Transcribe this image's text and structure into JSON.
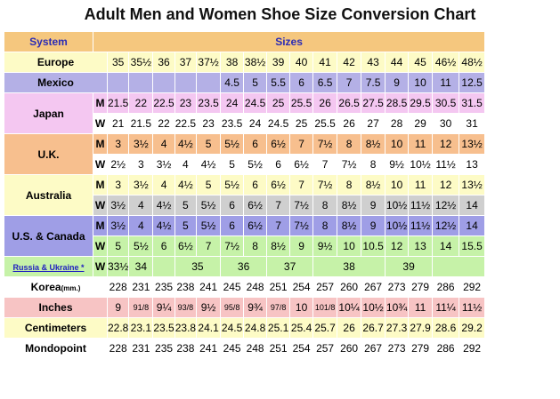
{
  "title": "Adult Men and Women Shoe Size Conversion Chart",
  "header": {
    "system": "System",
    "sizes": "Sizes"
  },
  "rows": {
    "europe": {
      "label": "Europe",
      "values": [
        "35",
        "35½",
        "36",
        "37",
        "37½",
        "38",
        "38½",
        "39",
        "40",
        "41",
        "42",
        "43",
        "44",
        "45",
        "46½",
        "48½"
      ]
    },
    "mexico": {
      "label": "Mexico",
      "values": [
        "",
        "",
        "",
        "",
        "",
        "4.5",
        "5",
        "5.5",
        "6",
        "6.5",
        "7",
        "7.5",
        "9",
        "10",
        "11",
        "12.5"
      ]
    },
    "japan_m": {
      "label": "Japan",
      "mw": "M",
      "values": [
        "21.5",
        "22",
        "22.5",
        "23",
        "23.5",
        "24",
        "24.5",
        "25",
        "25.5",
        "26",
        "26.5",
        "27.5",
        "28.5",
        "29.5",
        "30.5",
        "31.5"
      ]
    },
    "japan_w": {
      "mw": "W",
      "values": [
        "21",
        "21.5",
        "22",
        "22.5",
        "23",
        "23.5",
        "24",
        "24.5",
        "25",
        "25.5",
        "26",
        "27",
        "28",
        "29",
        "30",
        "31"
      ]
    },
    "uk_m": {
      "label": "U.K.",
      "mw": "M",
      "values": [
        "3",
        "3½",
        "4",
        "4½",
        "5",
        "5½",
        "6",
        "6½",
        "7",
        "7½",
        "8",
        "8½",
        "10",
        "11",
        "12",
        "13½"
      ]
    },
    "uk_w": {
      "mw": "W",
      "values": [
        "2½",
        "3",
        "3½",
        "4",
        "4½",
        "5",
        "5½",
        "6",
        "6½",
        "7",
        "7½",
        "8",
        "9½",
        "10½",
        "11½",
        "13"
      ]
    },
    "au_m": {
      "label": "Australia",
      "mw": "M",
      "values": [
        "3",
        "3½",
        "4",
        "4½",
        "5",
        "5½",
        "6",
        "6½",
        "7",
        "7½",
        "8",
        "8½",
        "10",
        "11",
        "12",
        "13½"
      ]
    },
    "au_w": {
      "mw": "W",
      "values": [
        "3½",
        "4",
        "4½",
        "5",
        "5½",
        "6",
        "6½",
        "7",
        "7½",
        "8",
        "8½",
        "9",
        "10½",
        "11½",
        "12½",
        "14"
      ]
    },
    "us_m": {
      "label": "U.S. & Canada",
      "mw": "M",
      "values": [
        "3½",
        "4",
        "4½",
        "5",
        "5½",
        "6",
        "6½",
        "7",
        "7½",
        "8",
        "8½",
        "9",
        "10½",
        "11½",
        "12½",
        "14"
      ]
    },
    "us_w": {
      "mw": "W",
      "values": [
        "5",
        "5½",
        "6",
        "6½",
        "7",
        "7½",
        "8",
        "8½",
        "9",
        "9½",
        "10",
        "10.5",
        "12",
        "13",
        "14",
        "15.5"
      ]
    },
    "russia": {
      "label": "Russia & Ukraine *",
      "mw": "W",
      "values": [
        "33½",
        "34",
        "35",
        "36",
        "37",
        "38",
        "39"
      ]
    },
    "korea": {
      "label": "Korea",
      "unit": "(mm.)",
      "values": [
        "228",
        "231",
        "235",
        "238",
        "241",
        "245",
        "248",
        "251",
        "254",
        "257",
        "260",
        "267",
        "273",
        "279",
        "286",
        "292"
      ]
    },
    "inches": {
      "label": "Inches",
      "values": [
        "9",
        "91/8",
        "9¼",
        "93/8",
        "9½",
        "95/8",
        "9¾",
        "97/8",
        "10",
        "101/8",
        "10¼",
        "10½",
        "10¾",
        "11",
        "11¼",
        "11½"
      ]
    },
    "centimeters": {
      "label": "Centimeters",
      "values": [
        "22.8",
        "23.1",
        "23.5",
        "23.8",
        "24.1",
        "24.5",
        "24.8",
        "25.1",
        "25.4",
        "25.7",
        "26",
        "26.7",
        "27.3",
        "27.9",
        "28.6",
        "29.2"
      ]
    },
    "mondopoint": {
      "label": "Mondopoint",
      "values": [
        "228",
        "231",
        "235",
        "238",
        "241",
        "245",
        "248",
        "251",
        "254",
        "257",
        "260",
        "267",
        "273",
        "279",
        "286",
        "292"
      ]
    }
  }
}
